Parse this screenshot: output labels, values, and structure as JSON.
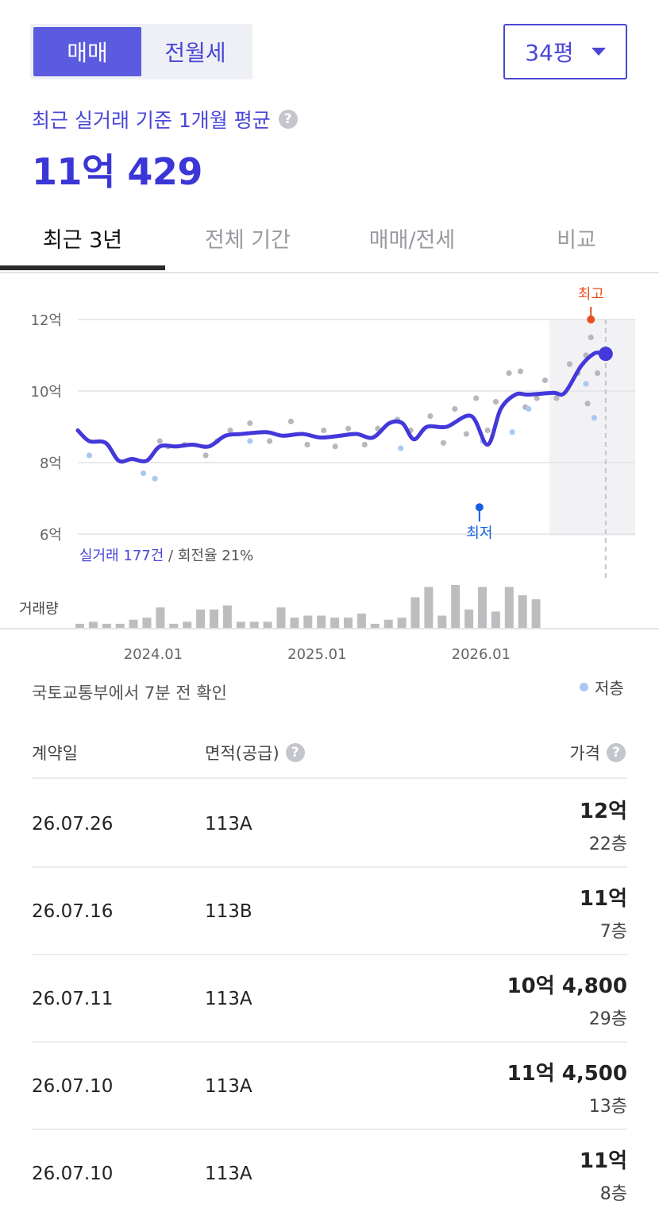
{
  "trade_toggle": {
    "sale": "매매",
    "rent": "전월세"
  },
  "size_select": {
    "value": "34평",
    "icon": "caret-down-icon"
  },
  "summary": {
    "label": "최근 실거래 기준 1개월 평균",
    "help_icon": "question-circle-icon",
    "price": "11억 429"
  },
  "tabs": [
    "최근 3년",
    "전체 기간",
    "매매/전세",
    "비교"
  ],
  "chart_stats": {
    "count": "실거래 177건",
    "turnover": " / 회전율 21%"
  },
  "chart_data": {
    "type": "line",
    "y_unit_labels": [
      "12억",
      "10억",
      "8억",
      "6억"
    ],
    "y_ticks": [
      12,
      10,
      8,
      6
    ],
    "ylim": [
      6,
      12
    ],
    "x_tick_labels": [
      "2024.01",
      "2025.01",
      "2026.01"
    ],
    "x_range": [
      "2023.07",
      "2026.12"
    ],
    "volume_label": "거래량",
    "markers": {
      "high_label": "최고",
      "low_label": "최저"
    },
    "series": [
      {
        "values": [
          [
            2023.55,
            8.9
          ],
          [
            2023.62,
            8.6
          ],
          [
            2023.72,
            8.55
          ],
          [
            2023.8,
            8.05
          ],
          [
            2023.88,
            8.1
          ],
          [
            2023.97,
            8.05
          ],
          [
            2024.05,
            8.45
          ],
          [
            2024.15,
            8.45
          ],
          [
            2024.25,
            8.5
          ],
          [
            2024.35,
            8.45
          ],
          [
            2024.45,
            8.75
          ],
          [
            2024.55,
            8.8
          ],
          [
            2024.7,
            8.85
          ],
          [
            2024.8,
            8.75
          ],
          [
            2024.92,
            8.8
          ],
          [
            2025.03,
            8.7
          ],
          [
            2025.15,
            8.75
          ],
          [
            2025.25,
            8.8
          ],
          [
            2025.35,
            8.7
          ],
          [
            2025.45,
            9.1
          ],
          [
            2025.53,
            9.1
          ],
          [
            2025.6,
            8.65
          ],
          [
            2025.68,
            9.0
          ],
          [
            2025.8,
            9.0
          ],
          [
            2025.95,
            9.3
          ],
          [
            2026.05,
            8.5
          ],
          [
            2026.13,
            9.5
          ],
          [
            2026.22,
            9.9
          ],
          [
            2026.3,
            9.9
          ],
          [
            2026.45,
            9.95
          ],
          [
            2026.52,
            9.95
          ],
          [
            2026.62,
            10.7
          ],
          [
            2026.7,
            11.05
          ],
          [
            2026.75,
            11.05
          ]
        ]
      }
    ],
    "scatter_gray": [
      [
        2024.05,
        8.6
      ],
      [
        2024.1,
        8.45
      ],
      [
        2024.2,
        8.5
      ],
      [
        2024.33,
        8.2
      ],
      [
        2024.4,
        8.6
      ],
      [
        2024.48,
        8.9
      ],
      [
        2024.6,
        9.1
      ],
      [
        2024.72,
        8.6
      ],
      [
        2024.85,
        9.15
      ],
      [
        2024.95,
        8.5
      ],
      [
        2025.05,
        8.9
      ],
      [
        2025.12,
        8.45
      ],
      [
        2025.2,
        8.95
      ],
      [
        2025.3,
        8.5
      ],
      [
        2025.38,
        8.95
      ],
      [
        2025.5,
        9.2
      ],
      [
        2025.58,
        8.9
      ],
      [
        2025.7,
        9.3
      ],
      [
        2025.78,
        8.55
      ],
      [
        2025.85,
        9.5
      ],
      [
        2025.92,
        8.8
      ],
      [
        2025.98,
        9.8
      ],
      [
        2026.05,
        8.9
      ],
      [
        2026.1,
        9.7
      ],
      [
        2026.18,
        10.5
      ],
      [
        2026.25,
        10.55
      ],
      [
        2026.28,
        9.55
      ],
      [
        2026.35,
        9.8
      ],
      [
        2026.4,
        10.3
      ],
      [
        2026.47,
        9.8
      ],
      [
        2026.55,
        10.75
      ],
      [
        2026.6,
        10.5
      ],
      [
        2026.65,
        11.0
      ],
      [
        2026.68,
        11.5
      ],
      [
        2026.72,
        10.5
      ],
      [
        2026.66,
        9.65
      ]
    ],
    "scatter_low_floor": [
      [
        2023.62,
        8.2
      ],
      [
        2023.95,
        7.7
      ],
      [
        2024.02,
        7.55
      ],
      [
        2024.6,
        8.6
      ],
      [
        2025.52,
        8.4
      ],
      [
        2026.02,
        8.6
      ],
      [
        2026.2,
        8.85
      ],
      [
        2026.3,
        9.5
      ],
      [
        2026.65,
        10.2
      ],
      [
        2026.7,
        9.25
      ]
    ],
    "high_point": [
      2026.68,
      12.0
    ],
    "low_point": [
      2026.0,
      6.75
    ],
    "current_point": [
      2026.77,
      11.04
    ],
    "volume": [
      2,
      3,
      2,
      2,
      4,
      5,
      10,
      2,
      3,
      9,
      9,
      11,
      3,
      3,
      3,
      10,
      5,
      6,
      6,
      5,
      5,
      7,
      2,
      4,
      5,
      15,
      20,
      6,
      21,
      9,
      20,
      8,
      20,
      16,
      14
    ],
    "volume_max": 21
  },
  "source": "국토교통부에서 7분 전 확인",
  "legend": {
    "low_floor": "저층"
  },
  "table": {
    "headers": {
      "date": "계약일",
      "area": "면적(공급)",
      "price": "가격"
    },
    "rows": [
      {
        "date": "26.07.26",
        "area": "113A",
        "price": "12억",
        "floor": "22층"
      },
      {
        "date": "26.07.16",
        "area": "113B",
        "price": "11억",
        "floor": "7층"
      },
      {
        "date": "26.07.11",
        "area": "113A",
        "price": "10억 4,800",
        "floor": "29층"
      },
      {
        "date": "26.07.10",
        "area": "113A",
        "price": "11억 4,500",
        "floor": "13층"
      },
      {
        "date": "26.07.10",
        "area": "113A",
        "price": "11억",
        "floor": "8층"
      }
    ]
  },
  "colors": {
    "accent": "#4a47d6",
    "line": "#4338d9",
    "high": "#e8501f",
    "low": "#1460e0",
    "low_floor_dot": "#a9c9f2",
    "gray_dot": "#b8b8bc",
    "volume_bar": "#bdbdc0"
  }
}
